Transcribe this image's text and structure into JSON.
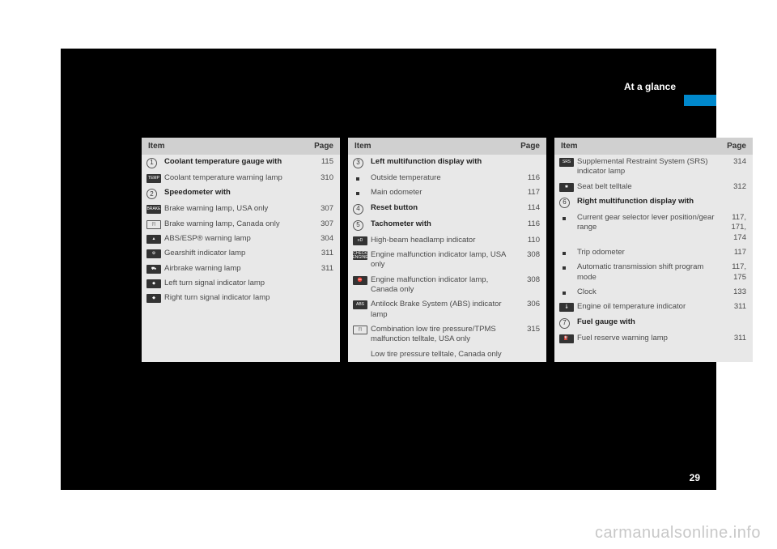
{
  "header": {
    "section_title": "At a glance",
    "page_number": "29",
    "watermark": "carmanualsonline.info"
  },
  "column_headers": {
    "item": "Item",
    "page": "Page"
  },
  "columns": [
    {
      "rows": [
        {
          "type": "circled",
          "marker": "1",
          "label": "Coolant temperature gauge with",
          "page": "115",
          "bold": true
        },
        {
          "type": "icon",
          "icon": "TEMP",
          "label": "Coolant temperature warning lamp",
          "page": "310"
        },
        {
          "type": "circled",
          "marker": "2",
          "label": "Speedometer with",
          "page": "",
          "bold": true
        },
        {
          "type": "icon",
          "icon": "BRAKE",
          "label": "Brake warning lamp, USA only",
          "page": "307"
        },
        {
          "type": "icon",
          "icon": "(!)",
          "outline": true,
          "label": "Brake warning lamp, Canada only",
          "page": "307"
        },
        {
          "type": "icon",
          "icon": "▲",
          "label": "ABS/ESP® warning lamp",
          "page": "304"
        },
        {
          "type": "icon",
          "icon": "⚙",
          "label": "Gearshift indicator lamp",
          "page": "311"
        },
        {
          "type": "icon",
          "icon": "⛟",
          "label": "Airbrake warning lamp",
          "page": "311"
        },
        {
          "type": "icon",
          "icon": "◆",
          "label": "Left turn signal indicator lamp",
          "page": ""
        },
        {
          "type": "icon",
          "icon": "◆",
          "label": "Right turn signal indicator lamp",
          "page": ""
        }
      ]
    },
    {
      "rows": [
        {
          "type": "circled",
          "marker": "3",
          "label": "Left multifunction display with",
          "page": "",
          "bold": true
        },
        {
          "type": "bullet",
          "label": "Outside temperature",
          "page": "116"
        },
        {
          "type": "bullet",
          "label": "Main odometer",
          "page": "117"
        },
        {
          "type": "circled",
          "marker": "4",
          "label": "Reset button",
          "page": "114",
          "bold": true
        },
        {
          "type": "circled",
          "marker": "5",
          "label": "Tachometer with",
          "page": "116",
          "bold": true
        },
        {
          "type": "icon",
          "icon": "≡D",
          "label": "High-beam headlamp indicator",
          "page": "110"
        },
        {
          "type": "icon",
          "icon": "CHECK\nENGINE",
          "label": "Engine malfunction indicator lamp, USA only",
          "page": "308"
        },
        {
          "type": "icon",
          "icon": "⛔",
          "label": "Engine malfunction indicator lamp, Canada only",
          "page": "308"
        },
        {
          "type": "icon",
          "icon": "ABS",
          "label": "Antilock Brake System (ABS) indicator lamp",
          "page": "306"
        },
        {
          "type": "icon",
          "icon": "(!)",
          "outline": true,
          "label": "Combination low tire pressure/TPMS malfunction telltale, USA only",
          "page": "315"
        },
        {
          "type": "blank",
          "label": "Low tire pressure telltale, Canada only",
          "page": ""
        }
      ]
    },
    {
      "rows": [
        {
          "type": "icon",
          "icon": "SRS",
          "label": "Supplemental Restraint System (SRS) indicator lamp",
          "page": "314"
        },
        {
          "type": "icon",
          "icon": "✱",
          "label": "Seat belt telltale",
          "page": "312"
        },
        {
          "type": "circled",
          "marker": "6",
          "label": "Right multifunction display with",
          "page": "",
          "bold": true
        },
        {
          "type": "bullet",
          "label": "Current gear selector lever position/gear range",
          "page": "117, 171, 174"
        },
        {
          "type": "bullet",
          "label": "Trip odometer",
          "page": "117"
        },
        {
          "type": "bullet",
          "label": "Automatic transmission shift program mode",
          "page": "117, 175"
        },
        {
          "type": "bullet",
          "label": "Clock",
          "page": "133"
        },
        {
          "type": "icon",
          "icon": "🌡",
          "label": "Engine oil temperature indicator",
          "page": "311"
        },
        {
          "type": "circled",
          "marker": "7",
          "label": "Fuel gauge with",
          "page": "",
          "bold": true
        },
        {
          "type": "icon",
          "icon": "⛽",
          "label": "Fuel reserve warning lamp",
          "page": "311"
        }
      ]
    }
  ]
}
